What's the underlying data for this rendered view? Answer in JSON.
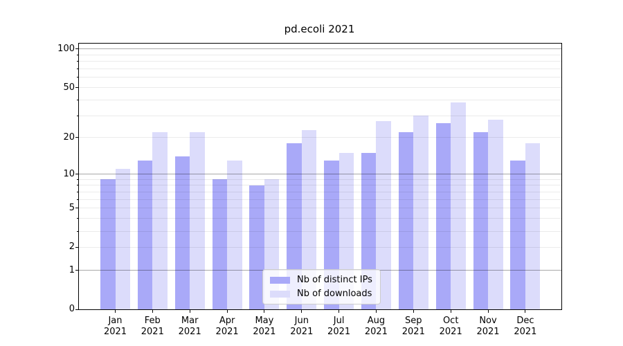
{
  "title": "pd.ecoli 2021",
  "chart_data": {
    "type": "bar",
    "title": "pd.ecoli 2021",
    "xlabel": "",
    "ylabel": "",
    "yscale": "log1p",
    "grid": true,
    "gridlines_over_bars": true,
    "legend_position": "lower center",
    "ylim": [
      0,
      110
    ],
    "ytick_values": [
      100,
      50,
      20,
      10,
      5,
      2,
      1,
      0
    ],
    "ytick_labels": [
      "100",
      "50",
      "20",
      "10",
      "5",
      "2",
      "1",
      "0"
    ],
    "minor_grid_values": [
      2,
      3,
      4,
      5,
      6,
      7,
      8,
      9,
      20,
      30,
      40,
      50,
      60,
      70,
      80,
      90
    ],
    "major_grid_values": [
      1,
      10,
      100
    ],
    "categories": [
      "Jan 2021",
      "Feb 2021",
      "Mar 2021",
      "Apr 2021",
      "May 2021",
      "Jun 2021",
      "Jul 2021",
      "Aug 2021",
      "Sep 2021",
      "Oct 2021",
      "Nov 2021",
      "Dec 2021"
    ],
    "category_line1": [
      "Jan",
      "Feb",
      "Mar",
      "Apr",
      "May",
      "Jun",
      "Jul",
      "Aug",
      "Sep",
      "Oct",
      "Nov",
      "Dec"
    ],
    "category_line2": [
      "2021",
      "2021",
      "2021",
      "2021",
      "2021",
      "2021",
      "2021",
      "2021",
      "2021",
      "2021",
      "2021",
      "2021"
    ],
    "series": [
      {
        "name": "Nb of distinct IPs",
        "key": "distinct-ips",
        "color": "#a9a9f8",
        "values": [
          9,
          13,
          14,
          9,
          8,
          18,
          13,
          15,
          22,
          26,
          22,
          13
        ]
      },
      {
        "name": "Nb of downloads",
        "key": "downloads",
        "color": "#dcdcfb",
        "values": [
          11,
          22,
          22,
          13,
          9,
          23,
          15,
          27,
          30,
          38,
          28,
          18
        ]
      }
    ]
  }
}
